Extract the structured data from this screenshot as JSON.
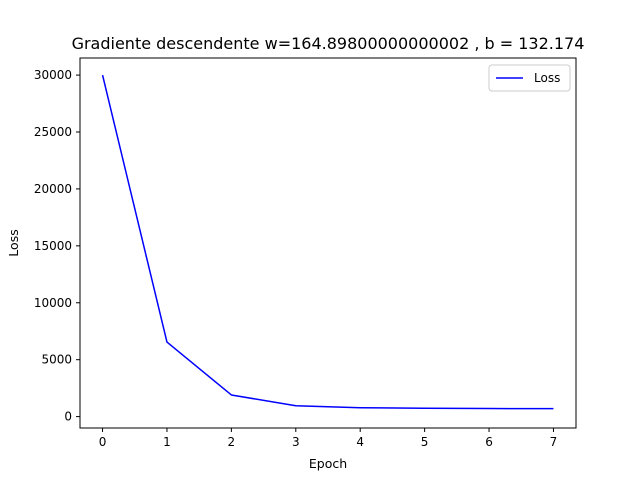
{
  "chart_data": {
    "type": "line",
    "title": "Gradiente descendente w=164.89800000000002 , b = 132.174",
    "xlabel": "Epoch",
    "ylabel": "Loss",
    "x": [
      0,
      1,
      2,
      3,
      4,
      5,
      6,
      7
    ],
    "series": [
      {
        "name": "Loss",
        "color": "#0000ff",
        "values": [
          30000,
          6550,
          1900,
          950,
          780,
          730,
          710,
          700
        ]
      }
    ],
    "xlim": [
      -0.35,
      7.35
    ],
    "ylim": [
      -1000,
      31500
    ],
    "xticks": [
      0,
      1,
      2,
      3,
      4,
      5,
      6,
      7
    ],
    "yticks": [
      0,
      5000,
      10000,
      15000,
      20000,
      25000,
      30000
    ],
    "xtick_labels": [
      "0",
      "1",
      "2",
      "3",
      "4",
      "5",
      "6",
      "7"
    ],
    "ytick_labels": [
      "0",
      "5000",
      "10000",
      "15000",
      "20000",
      "25000",
      "30000"
    ],
    "grid": false,
    "legend_position": "top-right"
  }
}
